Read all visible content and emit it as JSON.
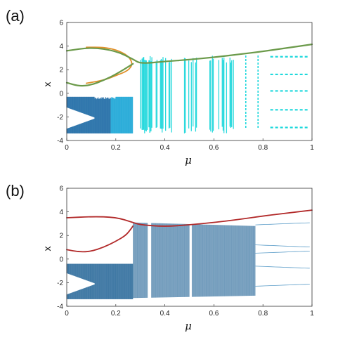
{
  "colors": {
    "orbit_green": "#6b9a4a",
    "orbit_orange": "#e0902a",
    "chaos_cyan": "#1fd8dc",
    "chaos_blue": "#1d6aa5",
    "bif_dark_blue": "#1b5f93",
    "unstable_red": "#b22a2a"
  },
  "chart_data": [
    {
      "type": "scatter",
      "panel_label": "(a)",
      "xlabel": "μ",
      "ylabel": "x",
      "xlim": [
        0,
        1
      ],
      "ylim": [
        -4,
        6
      ],
      "x_ticks": [
        "0",
        "0.2",
        "0.4",
        "0.6",
        "0.8",
        "1"
      ],
      "y_ticks": [
        "-4",
        "-2",
        "0",
        "2",
        "4",
        "6"
      ],
      "grid": false,
      "series": [
        {
          "kind": "chaotic-attractor-blue",
          "x_range": [
            0,
            0.27
          ],
          "y_band": [
            -3.4,
            -0.3
          ],
          "notch": {
            "x": [
              0,
              0.12
            ],
            "y": [
              -3.0,
              -1.2
            ]
          }
        },
        {
          "kind": "chaotic-attractor-cyan",
          "segments": [
            [
              0.3,
              0.34
            ],
            [
              0.34,
              0.43
            ],
            [
              0.48,
              0.53
            ],
            [
              0.58,
              0.6
            ],
            [
              0.62,
              0.68
            ]
          ],
          "y_band": [
            -3.4,
            3.2
          ]
        },
        {
          "kind": "periodic-windows-cyan",
          "x_range": [
            0.73,
            1.0
          ],
          "y_levels": [
            3.1,
            1.6,
            0.2,
            -1.4,
            -2.9
          ]
        },
        {
          "kind": "upper-branch-green",
          "x": [
            0,
            0.1,
            0.2,
            0.27,
            0.3,
            0.4,
            0.5,
            0.6,
            0.7,
            0.8,
            0.9,
            1.0
          ],
          "y": [
            3.6,
            3.9,
            3.6,
            2.9,
            2.5,
            2.7,
            2.85,
            3.05,
            3.3,
            3.55,
            3.85,
            4.15
          ]
        },
        {
          "kind": "lower-branch-green",
          "x": [
            0,
            0.05,
            0.1,
            0.15,
            0.2,
            0.27
          ],
          "y": [
            0.9,
            0.6,
            0.7,
            1.1,
            1.6,
            2.5
          ]
        },
        {
          "kind": "loop-orange",
          "x": [
            0.08,
            0.15,
            0.2,
            0.25,
            0.27,
            0.25,
            0.2,
            0.15,
            0.08
          ],
          "y": [
            3.9,
            3.9,
            3.7,
            3.2,
            2.5,
            1.9,
            1.5,
            1.1,
            0.85
          ]
        }
      ]
    },
    {
      "type": "scatter",
      "panel_label": "(b)",
      "xlabel": "μ",
      "ylabel": "x",
      "xlim": [
        0,
        1
      ],
      "ylim": [
        -4,
        6
      ],
      "x_ticks": [
        "0",
        "0.2",
        "0.4",
        "0.6",
        "0.8",
        "1"
      ],
      "y_ticks": [
        "-4",
        "-2",
        "0",
        "2",
        "4",
        "6"
      ],
      "grid": false,
      "series": [
        {
          "kind": "bifurcation-cloud",
          "x_range": [
            0,
            0.77
          ],
          "y_band_start": [
            -3.4,
            -0.4
          ],
          "y_band_jump_at": 0.27,
          "y_band_after": [
            -3.3,
            3.1
          ],
          "notch": {
            "x": [
              0,
              0.12
            ],
            "y": [
              -3.0,
              -1.2
            ]
          }
        },
        {
          "kind": "periodic-tails",
          "x_range": [
            0.77,
            1.0
          ],
          "y_levels": [
            2.9,
            1.2,
            0.5,
            -0.6,
            -2.3
          ]
        },
        {
          "kind": "unstable-orbit-red",
          "x": [
            0,
            0.1,
            0.2,
            0.27,
            0.3,
            0.4,
            0.5,
            0.6,
            0.7,
            0.8,
            0.9,
            1.0
          ],
          "y": [
            3.5,
            3.6,
            3.55,
            3.1,
            2.9,
            2.75,
            2.9,
            3.1,
            3.35,
            3.65,
            3.9,
            4.15
          ]
        },
        {
          "kind": "unstable-loop-red",
          "x": [
            0,
            0.05,
            0.1,
            0.15,
            0.2,
            0.24,
            0.26,
            0.27
          ],
          "y": [
            0.8,
            0.6,
            0.65,
            1.0,
            1.5,
            2.0,
            2.5,
            2.8
          ]
        }
      ]
    }
  ]
}
